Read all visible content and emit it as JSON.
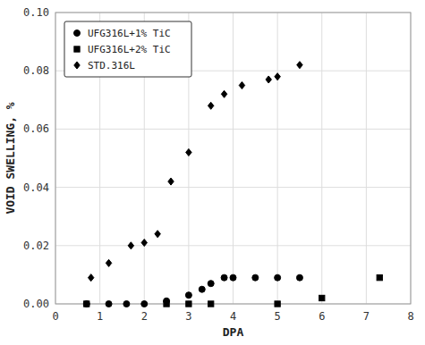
{
  "chart_data": {
    "type": "scatter",
    "xlabel": "DPA",
    "ylabel": "VOID SWELLING, %",
    "color": "black",
    "grid": true,
    "legend": "upper left",
    "xlim": [
      0,
      8
    ],
    "ylim": [
      0,
      0.1
    ],
    "xticks": [
      0,
      1,
      2,
      3,
      4,
      5,
      6,
      7,
      8
    ],
    "yticks": [
      {
        "value": 0,
        "label": "0.00"
      },
      {
        "value": 0.02,
        "label": "0.02"
      },
      {
        "value": 0.04,
        "label": "0.04"
      },
      {
        "value": 0.06,
        "label": "0.06"
      },
      {
        "value": 0.08,
        "label": "0.08"
      },
      {
        "value": 0.1,
        "label": "0.10"
      }
    ],
    "series": [
      {
        "name": "UFG316L+1% TiC",
        "marker": "circle",
        "x": [
          0.7,
          1.2,
          1.6,
          2.0,
          2.5,
          3.0,
          3.3,
          3.5,
          3.8,
          4.0,
          4.5,
          5.0,
          5.5
        ],
        "values": [
          0.0,
          0.0,
          0.0,
          0.0,
          0.001,
          0.003,
          0.005,
          0.007,
          0.009,
          0.009,
          0.009,
          0.009,
          0.009
        ]
      },
      {
        "name": "UFG316L+2% TiC",
        "marker": "square",
        "x": [
          0.7,
          2.5,
          3.0,
          3.5,
          5.0,
          6.0,
          7.3
        ],
        "values": [
          0.0,
          0.0,
          0.0,
          0.0,
          0.0,
          0.002,
          0.009
        ]
      },
      {
        "name": "STD.316L",
        "marker": "diamond",
        "x": [
          0.8,
          1.2,
          1.7,
          2.0,
          2.3,
          2.6,
          3.0,
          3.5,
          3.8,
          4.2,
          4.8,
          5.0,
          5.5
        ],
        "values": [
          0.009,
          0.014,
          0.02,
          0.021,
          0.024,
          0.042,
          0.052,
          0.068,
          0.072,
          0.075,
          0.077,
          0.078,
          0.082
        ]
      }
    ]
  }
}
